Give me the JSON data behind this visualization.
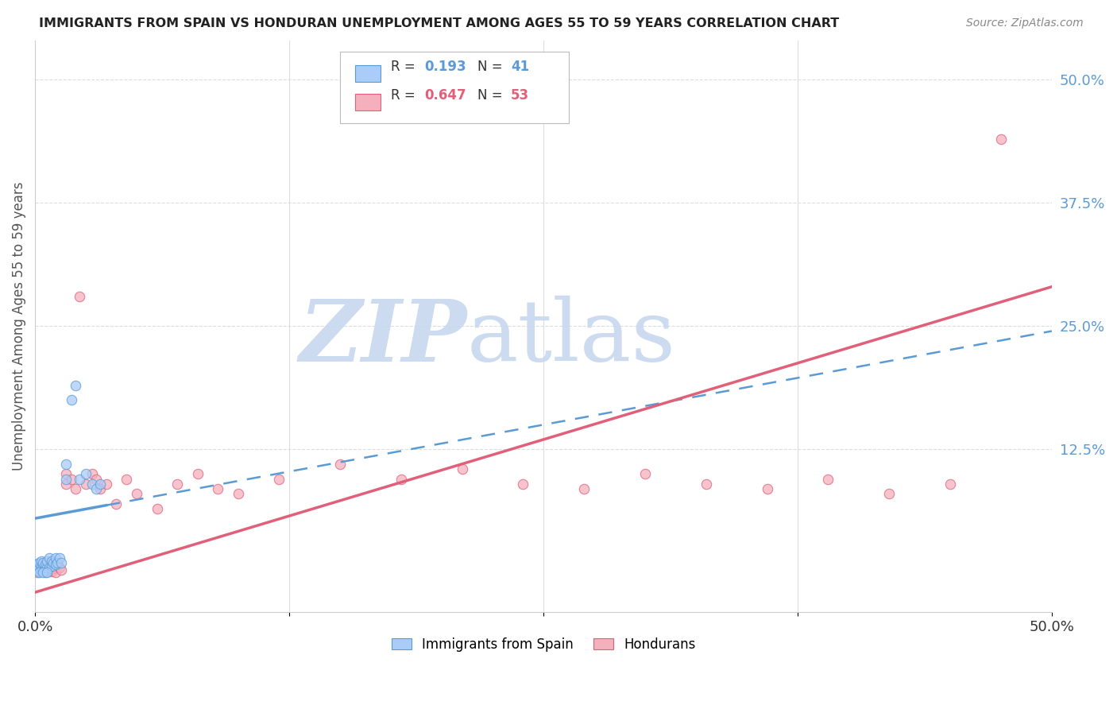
{
  "title": "IMMIGRANTS FROM SPAIN VS HONDURAN UNEMPLOYMENT AMONG AGES 55 TO 59 YEARS CORRELATION CHART",
  "source": "Source: ZipAtlas.com",
  "ylabel": "Unemployment Among Ages 55 to 59 years",
  "xlim": [
    0.0,
    0.5
  ],
  "ylim": [
    -0.04,
    0.54
  ],
  "background_color": "#ffffff",
  "watermark_zip_color": "#c8d8ef",
  "watermark_atlas_color": "#c8d8ef",
  "spain_color": "#aaccf8",
  "spain_edge_color": "#5b9bd5",
  "spain_R": 0.193,
  "spain_N": 41,
  "spain_line_color": "#5b9bd5",
  "spain_intercept": 0.055,
  "spain_slope": 0.38,
  "honduras_color": "#f5b0be",
  "honduras_edge_color": "#e0607a",
  "honduras_R": 0.647,
  "honduras_N": 53,
  "honduras_line_color": "#e0607a",
  "honduras_intercept": -0.02,
  "honduras_slope": 0.62,
  "grid_color": "#dddddd",
  "spine_color": "#cccccc",
  "tick_label_color": "#5b9bd5",
  "axis_label_color": "#555555",
  "spain_x": [
    0.001,
    0.001,
    0.001,
    0.002,
    0.002,
    0.002,
    0.002,
    0.003,
    0.003,
    0.003,
    0.003,
    0.004,
    0.004,
    0.004,
    0.005,
    0.005,
    0.005,
    0.006,
    0.006,
    0.007,
    0.007,
    0.008,
    0.008,
    0.009,
    0.01,
    0.01,
    0.011,
    0.012,
    0.013,
    0.015,
    0.015,
    0.018,
    0.02,
    0.022,
    0.025,
    0.028,
    0.03,
    0.032,
    0.002,
    0.004,
    0.006
  ],
  "spain_y": [
    0.002,
    0.005,
    0.008,
    0.002,
    0.004,
    0.006,
    0.01,
    0.003,
    0.005,
    0.007,
    0.012,
    0.002,
    0.005,
    0.01,
    0.0,
    0.005,
    0.008,
    0.005,
    0.012,
    0.005,
    0.015,
    0.007,
    0.012,
    0.01,
    0.008,
    0.015,
    0.01,
    0.015,
    0.01,
    0.095,
    0.11,
    0.175,
    0.19,
    0.095,
    0.1,
    0.09,
    0.085,
    0.09,
    0.0,
    0.0,
    0.0
  ],
  "honduras_x": [
    0.001,
    0.001,
    0.002,
    0.002,
    0.003,
    0.003,
    0.004,
    0.004,
    0.005,
    0.005,
    0.006,
    0.006,
    0.007,
    0.007,
    0.008,
    0.008,
    0.009,
    0.01,
    0.01,
    0.011,
    0.012,
    0.013,
    0.015,
    0.015,
    0.018,
    0.02,
    0.022,
    0.025,
    0.028,
    0.03,
    0.032,
    0.035,
    0.04,
    0.045,
    0.05,
    0.06,
    0.07,
    0.08,
    0.09,
    0.1,
    0.12,
    0.15,
    0.18,
    0.21,
    0.24,
    0.27,
    0.3,
    0.33,
    0.36,
    0.39,
    0.42,
    0.45,
    0.475
  ],
  "honduras_y": [
    0.0,
    0.005,
    0.003,
    0.007,
    0.002,
    0.008,
    0.003,
    0.006,
    0.001,
    0.007,
    0.003,
    0.008,
    0.004,
    0.002,
    0.005,
    0.001,
    0.004,
    0.006,
    0.0,
    0.008,
    0.005,
    0.003,
    0.09,
    0.1,
    0.095,
    0.085,
    0.28,
    0.09,
    0.1,
    0.095,
    0.085,
    0.09,
    0.07,
    0.095,
    0.08,
    0.065,
    0.09,
    0.1,
    0.085,
    0.08,
    0.095,
    0.11,
    0.095,
    0.105,
    0.09,
    0.085,
    0.1,
    0.09,
    0.085,
    0.095,
    0.08,
    0.09,
    0.44
  ]
}
